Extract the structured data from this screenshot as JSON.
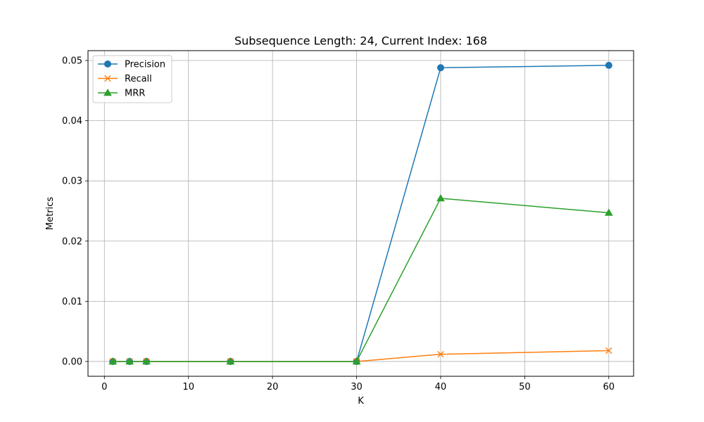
{
  "chart_data": {
    "type": "line",
    "title": "Subsequence Length: 24, Current Index: 168",
    "xlabel": "K",
    "ylabel": "Metrics",
    "xlim": [
      -1.95,
      62.95
    ],
    "ylim": [
      -0.00246,
      0.05164
    ],
    "xticks": [
      "0",
      "10",
      "20",
      "30",
      "40",
      "50",
      "60"
    ],
    "xtick_values": [
      0,
      10,
      20,
      30,
      40,
      50,
      60
    ],
    "yticks": [
      "0.00",
      "0.01",
      "0.02",
      "0.03",
      "0.04",
      "0.05"
    ],
    "ytick_values": [
      0,
      0.01,
      0.02,
      0.03,
      0.04,
      0.05
    ],
    "grid": true,
    "legend_position": "upper-left",
    "x": [
      1,
      3,
      5,
      15,
      30,
      40,
      60
    ],
    "series": [
      {
        "name": "Precision",
        "marker": "circle",
        "color": "#1f77b4",
        "values": [
          0,
          0,
          0,
          0,
          0,
          0.0488,
          0.0492
        ]
      },
      {
        "name": "Recall",
        "marker": "x",
        "color": "#ff7f0e",
        "values": [
          0,
          0,
          0,
          0,
          0,
          0.0012,
          0.0018
        ]
      },
      {
        "name": "MRR",
        "marker": "triangle",
        "color": "#2ca02c",
        "values": [
          0,
          0,
          0,
          0,
          0,
          0.0271,
          0.0247
        ]
      }
    ]
  }
}
